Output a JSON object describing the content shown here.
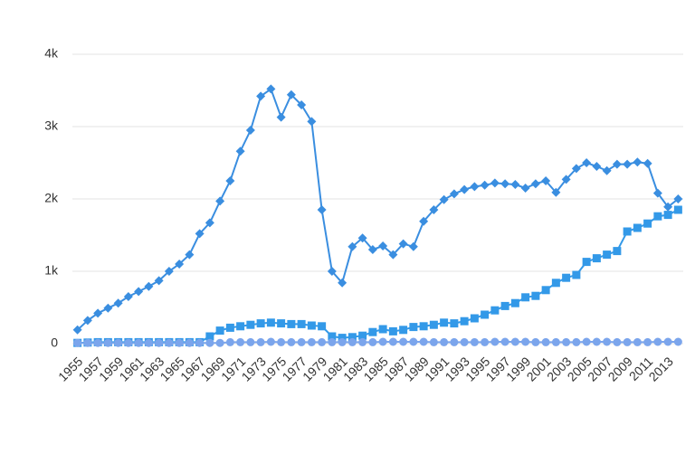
{
  "chart_data": {
    "type": "line",
    "x": [
      1955,
      1956,
      1957,
      1958,
      1959,
      1960,
      1961,
      1962,
      1963,
      1964,
      1965,
      1966,
      1967,
      1968,
      1969,
      1970,
      1971,
      1972,
      1973,
      1974,
      1975,
      1976,
      1977,
      1978,
      1979,
      1980,
      1981,
      1982,
      1983,
      1984,
      1985,
      1986,
      1987,
      1988,
      1989,
      1990,
      1991,
      1992,
      1993,
      1994,
      1995,
      1996,
      1997,
      1998,
      1999,
      2000,
      2001,
      2002,
      2003,
      2004,
      2005,
      2006,
      2007,
      2008,
      2009,
      2010,
      2011,
      2012,
      2013,
      2014
    ],
    "xlim": [
      1954.5,
      2014.5
    ],
    "xticks": [
      1955,
      1957,
      1959,
      1961,
      1963,
      1965,
      1967,
      1969,
      1971,
      1973,
      1975,
      1977,
      1979,
      1981,
      1983,
      1985,
      1987,
      1989,
      1991,
      1993,
      1995,
      1997,
      1999,
      2001,
      2003,
      2005,
      2007,
      2009,
      2011,
      2013
    ],
    "ylim": [
      0,
      4000
    ],
    "yticks": [
      0,
      {
        "value": 1000,
        "label": "1k"
      },
      {
        "value": 2000,
        "label": "2k"
      },
      {
        "value": 3000,
        "label": "3k"
      },
      {
        "value": 4000,
        "label": "4k"
      }
    ],
    "grid": true,
    "series": [
      {
        "color": "#3a8ee0",
        "marker": "diamond",
        "values": [
          190,
          320,
          420,
          490,
          560,
          650,
          720,
          790,
          870,
          1000,
          1100,
          1230,
          1520,
          1670,
          1970,
          2250,
          2660,
          2950,
          3420,
          3520,
          3130,
          3440,
          3300,
          3070,
          1850,
          1000,
          840,
          1340,
          1460,
          1300,
          1350,
          1230,
          1380,
          1340,
          1690,
          1850,
          1990,
          2070,
          2130,
          2170,
          2190,
          2220,
          2210,
          2200,
          2150,
          2210,
          2250,
          2090,
          2270,
          2420,
          2500,
          2450,
          2390,
          2480,
          2480,
          2510,
          2490,
          2080,
          1890,
          2000
        ]
      },
      {
        "color": "#3399e8",
        "marker": "square",
        "values": [
          10,
          15,
          20,
          20,
          20,
          20,
          20,
          20,
          20,
          20,
          20,
          20,
          20,
          100,
          180,
          220,
          240,
          260,
          280,
          290,
          280,
          270,
          270,
          250,
          240,
          100,
          80,
          90,
          110,
          160,
          200,
          170,
          190,
          230,
          240,
          260,
          290,
          280,
          310,
          350,
          400,
          460,
          520,
          560,
          640,
          660,
          740,
          840,
          910,
          950,
          1130,
          1180,
          1230,
          1280,
          1550,
          1600,
          1660,
          1760,
          1780,
          1850
        ]
      },
      {
        "color": "#7ba5ec",
        "marker": "circle",
        "values": [
          10,
          10,
          10,
          10,
          10,
          10,
          10,
          10,
          10,
          10,
          10,
          10,
          10,
          10,
          10,
          20,
          20,
          20,
          20,
          25,
          20,
          20,
          20,
          20,
          20,
          20,
          20,
          20,
          20,
          20,
          25,
          25,
          25,
          25,
          25,
          20,
          20,
          20,
          20,
          20,
          20,
          25,
          25,
          25,
          25,
          20,
          20,
          20,
          20,
          20,
          25,
          25,
          25,
          20,
          20,
          20,
          20,
          25,
          25,
          25
        ]
      }
    ]
  }
}
